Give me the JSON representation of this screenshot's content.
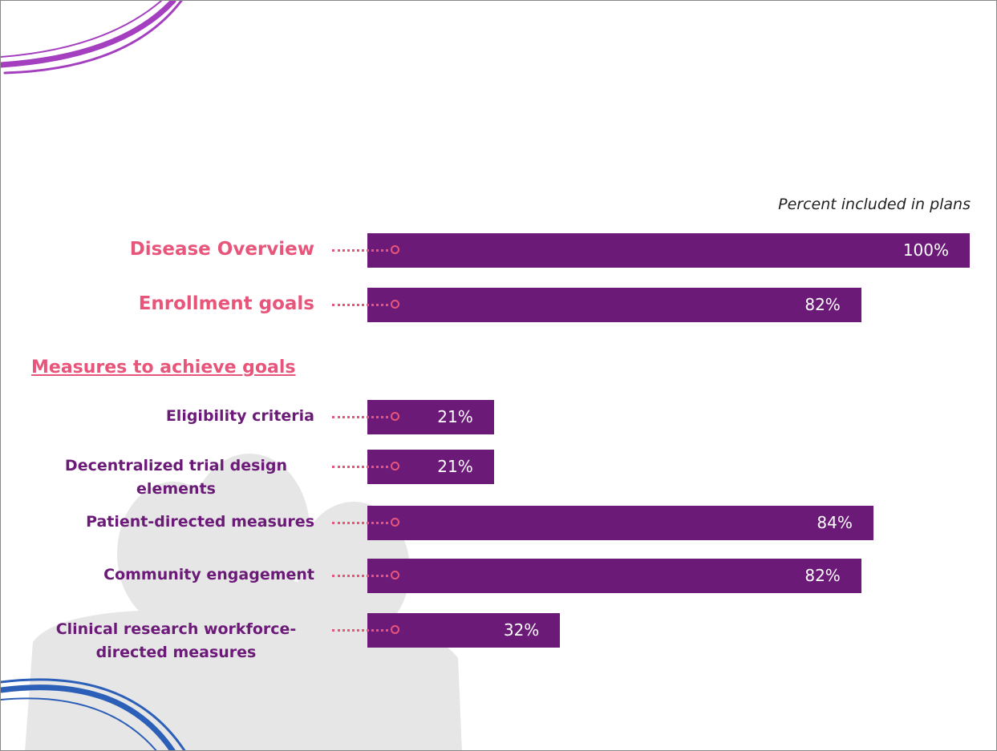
{
  "chart_data": {
    "type": "bar",
    "orientation": "horizontal",
    "subtitle": "Percent included in plans",
    "section_label": "Measures to achieve goals",
    "categories": [
      "Disease Overview",
      "Enrollment goals",
      "Eligibility criteria",
      "Decentralized trial design elements",
      "Patient-directed measures",
      "Community engagement",
      "Clinical research workforce-directed measures"
    ],
    "values": [
      100,
      82,
      21,
      21,
      84,
      82,
      32
    ],
    "value_labels": [
      "100%",
      "82%",
      "21%",
      "21%",
      "84%",
      "82%",
      "32%"
    ],
    "color": "#6b1a78"
  }
}
